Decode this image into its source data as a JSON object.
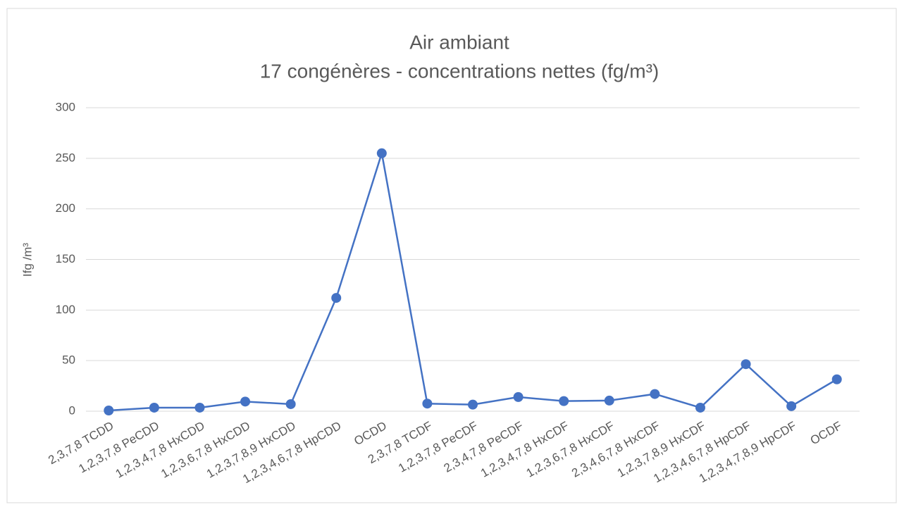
{
  "chart_data": {
    "type": "line",
    "title": "Air ambiant",
    "subtitle": "17 congénères - concentrations nettes (fg/m³)",
    "y_label": "Ifg /m³",
    "categories": [
      "2,3,7,8 TCDD",
      "1,2,3,7,8 PeCDD",
      "1,2,3,4,7,8 HxCDD",
      "1,2,3,6,7,8 HxCDD",
      "1,2,3,7,8,9 HxCDD",
      "1,2,3,4,6,7,8 HpCDD",
      "OCDD",
      "2,3,7,8 TCDF",
      "1,2,3,7,8 PeCDF",
      "2,3,4,7,8 PeCDF",
      "1,2,3,4,7,8 HxCDF",
      "1,2,3,6,7,8 HxCDF",
      "2,3,4,6,7,8 HxCDF",
      "1,2,3,7,8,9 HxCDF",
      "1,2,3,4,6,7,8 HpCDF",
      "1,2,3,4,7,8,9 HpCDF",
      "OCDF"
    ],
    "values": [
      0.7,
      3.5,
      3.5,
      9.5,
      7,
      112,
      255,
      7.5,
      6.5,
      14,
      10,
      10.5,
      17,
      3.5,
      46.5,
      5,
      31.5
    ],
    "color": "#4472c4",
    "ylim": [
      0,
      300
    ],
    "yticks": [
      0,
      50,
      100,
      150,
      200,
      250,
      300
    ],
    "grid": true
  }
}
